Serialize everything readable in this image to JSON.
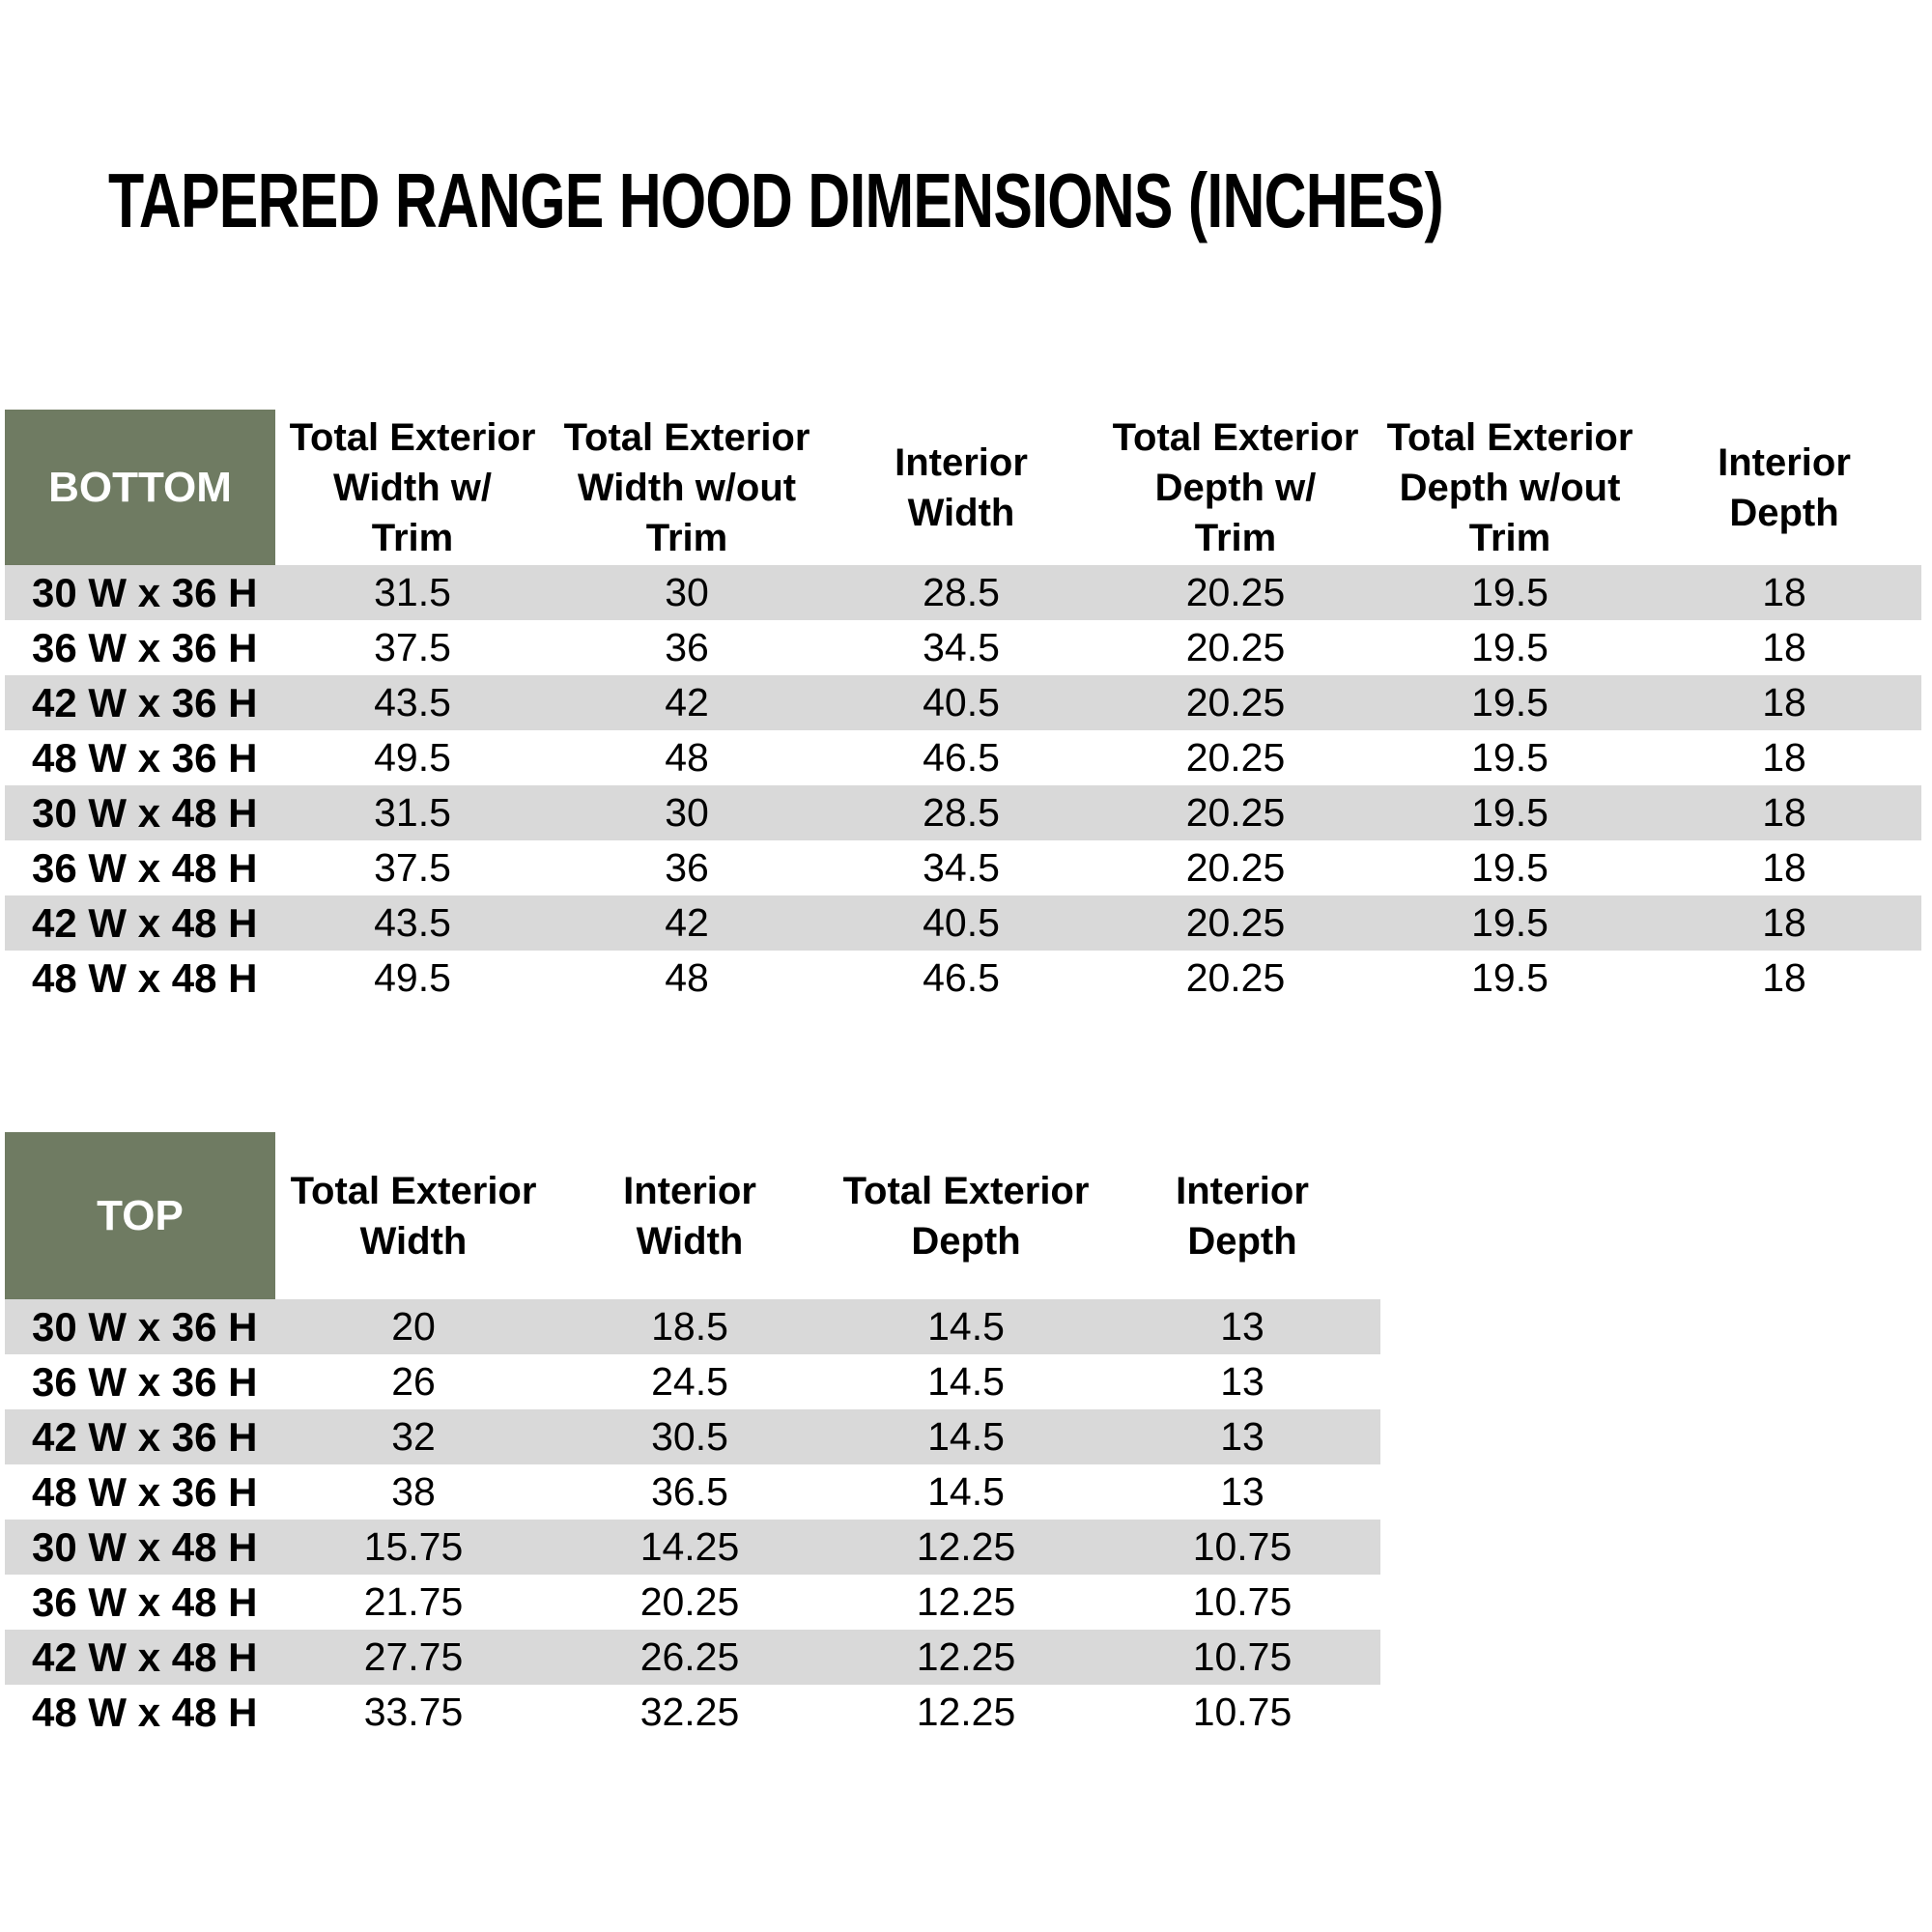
{
  "title": "TAPERED RANGE HOOD DIMENSIONS (INCHES)",
  "colors": {
    "header_green": "#6F7B62",
    "stripe_gray": "#D9D9D9",
    "text": "#000000",
    "background": "#FFFFFF"
  },
  "bottom_table": {
    "corner_label": "BOTTOM",
    "columns": [
      "Total Exterior\nWidth w/\nTrim",
      "Total Exterior\nWidth w/out\nTrim",
      "Interior\nWidth",
      "Total Exterior\nDepth w/\nTrim",
      "Total Exterior\nDepth w/out\nTrim",
      "Interior\nDepth"
    ],
    "rows": [
      {
        "label": "30 W x 36 H",
        "values": [
          "31.5",
          "30",
          "28.5",
          "20.25",
          "19.5",
          "18"
        ]
      },
      {
        "label": "36 W x 36 H",
        "values": [
          "37.5",
          "36",
          "34.5",
          "20.25",
          "19.5",
          "18"
        ]
      },
      {
        "label": "42 W x 36 H",
        "values": [
          "43.5",
          "42",
          "40.5",
          "20.25",
          "19.5",
          "18"
        ]
      },
      {
        "label": "48 W x 36 H",
        "values": [
          "49.5",
          "48",
          "46.5",
          "20.25",
          "19.5",
          "18"
        ]
      },
      {
        "label": "30 W x 48 H",
        "values": [
          "31.5",
          "30",
          "28.5",
          "20.25",
          "19.5",
          "18"
        ]
      },
      {
        "label": "36 W x 48 H",
        "values": [
          "37.5",
          "36",
          "34.5",
          "20.25",
          "19.5",
          "18"
        ]
      },
      {
        "label": "42 W x 48 H",
        "values": [
          "43.5",
          "42",
          "40.5",
          "20.25",
          "19.5",
          "18"
        ]
      },
      {
        "label": "48 W x 48 H",
        "values": [
          "49.5",
          "48",
          "46.5",
          "20.25",
          "19.5",
          "18"
        ]
      }
    ]
  },
  "top_table": {
    "corner_label": "TOP",
    "columns": [
      "Total Exterior\nWidth",
      "Interior\nWidth",
      "Total Exterior\nDepth",
      "Interior\nDepth"
    ],
    "rows": [
      {
        "label": "30 W x 36 H",
        "values": [
          "20",
          "18.5",
          "14.5",
          "13"
        ]
      },
      {
        "label": "36 W x 36 H",
        "values": [
          "26",
          "24.5",
          "14.5",
          "13"
        ]
      },
      {
        "label": "42 W x 36 H",
        "values": [
          "32",
          "30.5",
          "14.5",
          "13"
        ]
      },
      {
        "label": "48 W x 36 H",
        "values": [
          "38",
          "36.5",
          "14.5",
          "13"
        ]
      },
      {
        "label": "30 W x 48 H",
        "values": [
          "15.75",
          "14.25",
          "12.25",
          "10.75"
        ]
      },
      {
        "label": "36 W x 48 H",
        "values": [
          "21.75",
          "20.25",
          "12.25",
          "10.75"
        ]
      },
      {
        "label": "42 W x 48 H",
        "values": [
          "27.75",
          "26.25",
          "12.25",
          "10.75"
        ]
      },
      {
        "label": "48 W x 48 H",
        "values": [
          "33.75",
          "32.25",
          "12.25",
          "10.75"
        ]
      }
    ]
  }
}
